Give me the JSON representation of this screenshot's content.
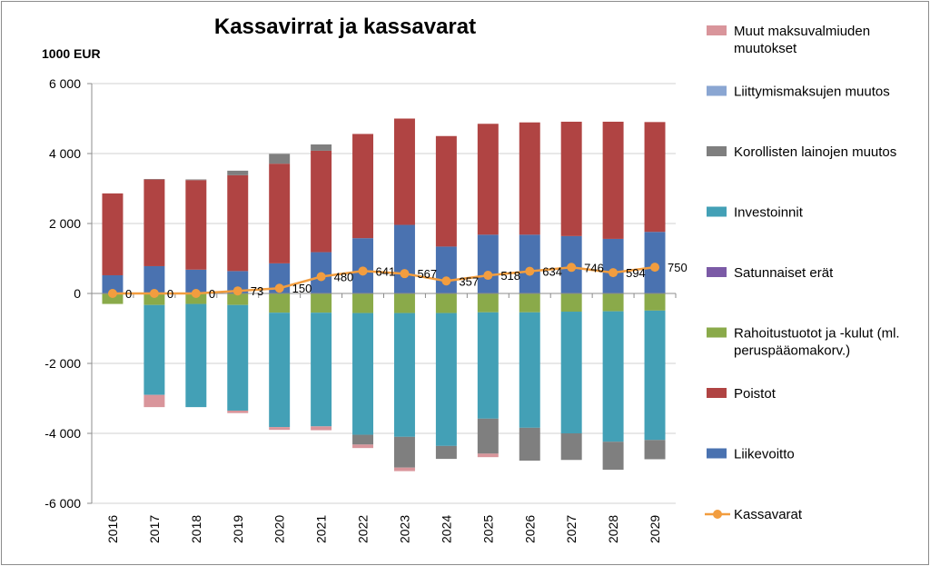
{
  "chart_data": {
    "type": "bar",
    "title": "Kassavirrat ja kassavarat",
    "ylabel": "1000 EUR",
    "ylim": [
      -6000,
      6000
    ],
    "yticks": [
      -6000,
      -4000,
      -2000,
      0,
      2000,
      4000,
      6000
    ],
    "ytick_labels": [
      "-6 000",
      "-4 000",
      "-2 000",
      "0",
      "2 000",
      "4 000",
      "6 000"
    ],
    "grid": "horizontal",
    "legend_position": "right",
    "categories": [
      "2016",
      "2017",
      "2018",
      "2019",
      "2020",
      "2021",
      "2022",
      "2023",
      "2024",
      "2025",
      "2026",
      "2027",
      "2028",
      "2029"
    ],
    "series": [
      {
        "name": "Liikevoitto",
        "kind": "bar",
        "color": "#4a72b0",
        "values": [
          520,
          780,
          680,
          640,
          860,
          1180,
          1580,
          1960,
          1340,
          1680,
          1680,
          1640,
          1560,
          1760
        ]
      },
      {
        "name": "Poistot",
        "kind": "bar",
        "color": "#b04443",
        "values": [
          2340,
          2480,
          2560,
          2740,
          2850,
          2900,
          2980,
          3040,
          3160,
          3170,
          3210,
          3270,
          3350,
          3140
        ]
      },
      {
        "name": "Rahoitustuotot ja -kulut (ml. peruspääomakorv.)",
        "kind": "bar",
        "color": "#8aaa4a",
        "values": [
          -300,
          -330,
          -300,
          -330,
          -550,
          -550,
          -560,
          -560,
          -560,
          -540,
          -540,
          -520,
          -510,
          -490
        ]
      },
      {
        "name": "Satunnaiset erät",
        "kind": "bar",
        "color": "#7b5aa6",
        "values": [
          0,
          0,
          0,
          0,
          0,
          0,
          0,
          0,
          0,
          0,
          0,
          0,
          0,
          0
        ]
      },
      {
        "name": "Investoinnit",
        "kind": "bar",
        "color": "#43a0b6",
        "values": [
          0,
          -2570,
          -2950,
          -3020,
          -3270,
          -3250,
          -3480,
          -3540,
          -3800,
          -3040,
          -3300,
          -3480,
          -3730,
          -3700
        ]
      },
      {
        "name": "Korollisten lainojen muutos",
        "kind": "bar",
        "color": "#7f7f7f",
        "values": [
          0,
          10,
          20,
          130,
          280,
          180,
          -280,
          -880,
          -370,
          -1000,
          -940,
          -760,
          -800,
          -550
        ]
      },
      {
        "name": "Liittymismaksujen muutos",
        "kind": "bar",
        "color": "#8aa6d2",
        "values": [
          0,
          0,
          0,
          0,
          0,
          0,
          0,
          0,
          0,
          0,
          0,
          0,
          0,
          0
        ]
      },
      {
        "name": "Muut maksuvalmiuden muutokset",
        "kind": "bar",
        "color": "#d9959b",
        "values": [
          0,
          -350,
          0,
          -70,
          -80,
          -110,
          -100,
          -100,
          0,
          -100,
          0,
          0,
          0,
          0
        ]
      },
      {
        "name": "Kassavarat",
        "kind": "line",
        "color": "#f29d3f",
        "values": [
          0,
          0,
          0,
          73,
          150,
          480,
          641,
          567,
          357,
          518,
          634,
          746,
          594,
          750
        ]
      }
    ],
    "data_labels": [
      "0",
      "0",
      "0",
      "73",
      "150",
      "480",
      "641",
      "567",
      "357",
      "518",
      "634",
      "746",
      "594",
      "750"
    ],
    "legend": [
      {
        "label_lines": [
          "Muut maksuvalmiuden",
          "muutokset"
        ],
        "color": "#d9959b",
        "marker": "box"
      },
      {
        "label_lines": [
          "Liittymismaksujen muutos"
        ],
        "color": "#8aa6d2",
        "marker": "box"
      },
      {
        "label_lines": [
          "Korollisten lainojen muutos"
        ],
        "color": "#7f7f7f",
        "marker": "box"
      },
      {
        "label_lines": [
          "Investoinnit"
        ],
        "color": "#43a0b6",
        "marker": "box"
      },
      {
        "label_lines": [
          "Satunnaiset erät"
        ],
        "color": "#7b5aa6",
        "marker": "box"
      },
      {
        "label_lines": [
          "Rahoitustuotot ja -kulut (ml.",
          "peruspääomakorv.)"
        ],
        "color": "#8aaa4a",
        "marker": "box"
      },
      {
        "label_lines": [
          "Poistot"
        ],
        "color": "#b04443",
        "marker": "box"
      },
      {
        "label_lines": [
          "Liikevoitto"
        ],
        "color": "#4a72b0",
        "marker": "box"
      },
      {
        "label_lines": [
          "Kassavarat"
        ],
        "color": "#f29d3f",
        "marker": "line"
      }
    ]
  }
}
